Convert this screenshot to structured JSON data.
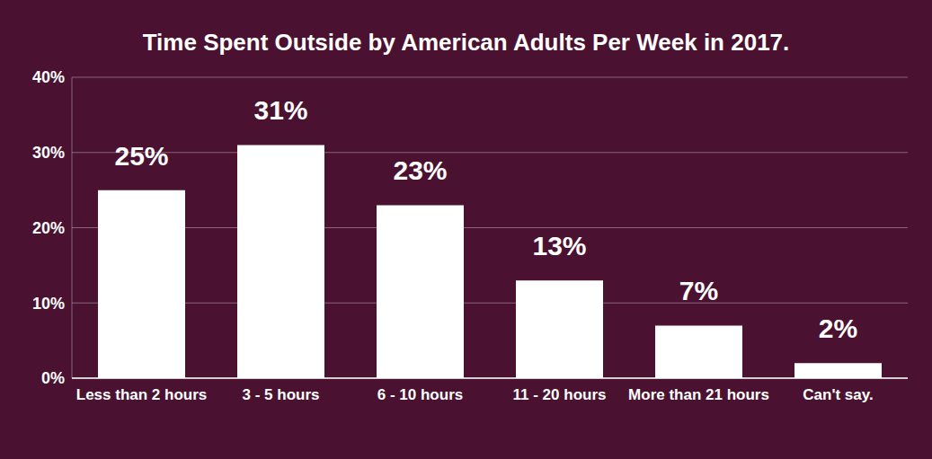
{
  "chart_data": {
    "type": "bar",
    "title": "Time Spent Outside by American Adults Per Week in 2017.",
    "categories": [
      "Less than 2 hours",
      "3 - 5 hours",
      "6 - 10 hours",
      "11 - 20 hours",
      "More than 21 hours",
      "Can't say."
    ],
    "values": [
      25,
      31,
      23,
      13,
      7,
      2
    ],
    "value_labels": [
      "25%",
      "31%",
      "23%",
      "13%",
      "7%",
      "2%"
    ],
    "color": "#ffffff",
    "ylim": [
      0,
      40
    ],
    "yticks": [
      {
        "value": 0,
        "label": "0%"
      },
      {
        "value": 10,
        "label": "10%"
      },
      {
        "value": 20,
        "label": "20%"
      },
      {
        "value": 30,
        "label": "30%"
      },
      {
        "value": 40,
        "label": "40%"
      }
    ],
    "grid": true,
    "data_labels": true
  }
}
